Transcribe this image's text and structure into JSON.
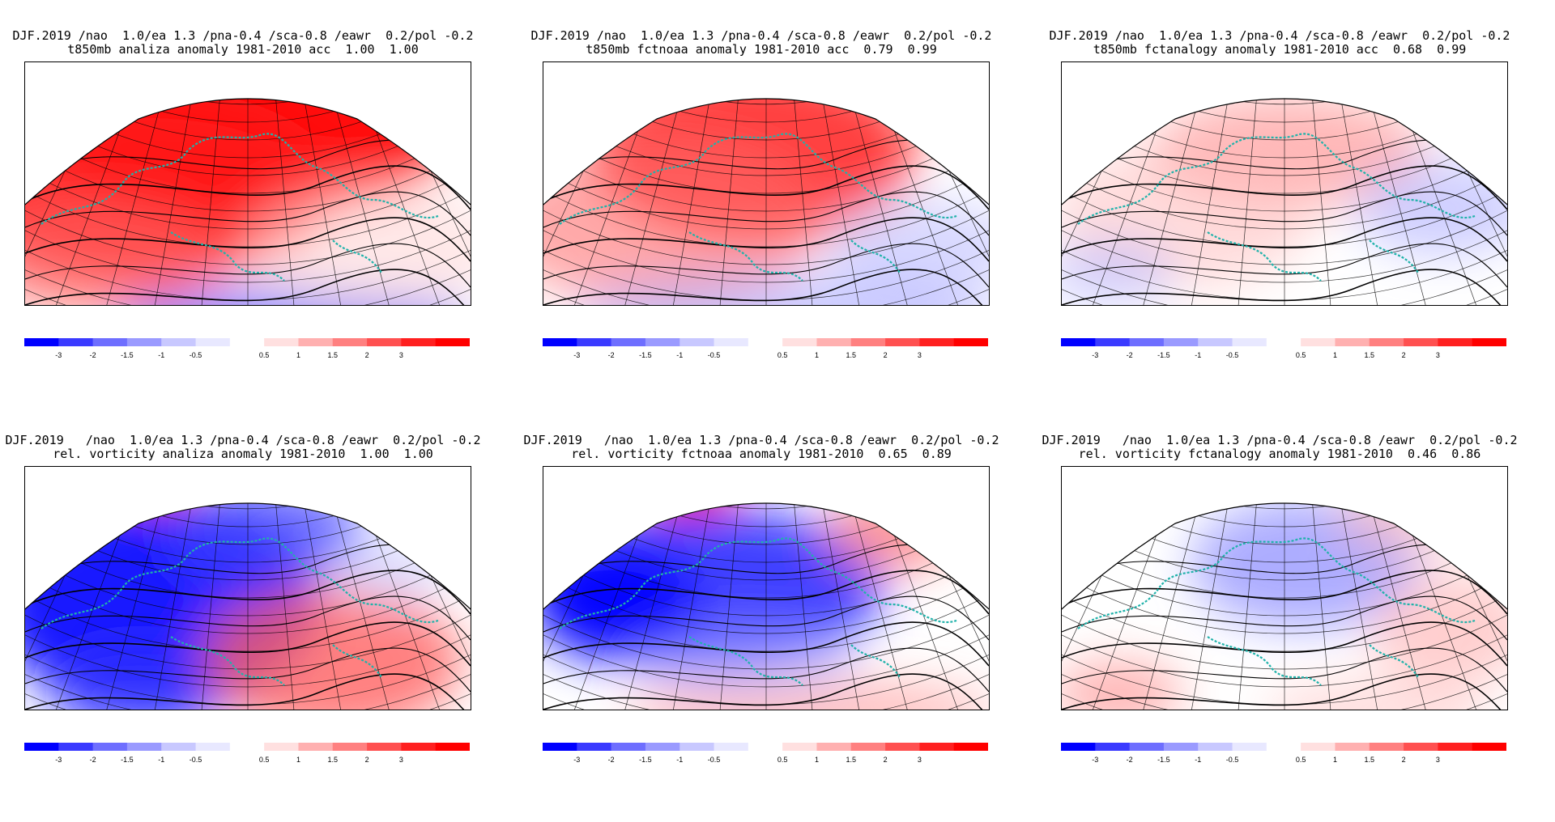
{
  "panels": [
    {
      "title1": "DJF.2019 /nao  1.0/ea 1.3 /pna-0.4 /sca-0.8 /eawr  0.2/pol -0.2",
      "title2": "t850mb analiza anomaly 1981-2010 acc  1.00  1.00",
      "pattern": "t_analysis"
    },
    {
      "title1": "DJF.2019 /nao  1.0/ea 1.3 /pna-0.4 /sca-0.8 /eawr  0.2/pol -0.2",
      "title2": "t850mb fctnoaa anomaly 1981-2010 acc  0.79  0.99",
      "pattern": "t_noaa"
    },
    {
      "title1": "DJF.2019 /nao  1.0/ea 1.3 /pna-0.4 /sca-0.8 /eawr  0.2/pol -0.2",
      "title2": "t850mb fctanalogy anomaly 1981-2010 acc  0.68  0.99",
      "pattern": "t_analog"
    },
    {
      "title1": "DJF.2019   /nao  1.0/ea 1.3 /pna-0.4 /sca-0.8 /eawr  0.2/pol -0.2",
      "title2": "rel. vorticity analiza anomaly 1981-2010  1.00  1.00",
      "pattern": "v_analysis"
    },
    {
      "title1": "DJF.2019   /nao  1.0/ea 1.3 /pna-0.4 /sca-0.8 /eawr  0.2/pol -0.2",
      "title2": "rel. vorticity fctnoaa anomaly 1981-2010  0.65  0.89",
      "pattern": "v_noaa"
    },
    {
      "title1": "DJF.2019   /nao  1.0/ea 1.3 /pna-0.4 /sca-0.8 /eawr  0.2/pol -0.2",
      "title2": "rel. vorticity fctanalogy anomaly 1981-2010  0.46  0.86",
      "pattern": "v_analog"
    }
  ],
  "colorbar": {
    "colors": [
      "#0000ff",
      "#3a3aff",
      "#6e6eff",
      "#9a9aff",
      "#c8c8ff",
      "#e8e8ff",
      "#ffffff",
      "#ffe0e0",
      "#ffb0b0",
      "#ff8080",
      "#ff5050",
      "#ff2020",
      "#ff0000"
    ],
    "labels": [
      "-3",
      "-2",
      "-1.5",
      "-1",
      "-0.5",
      "0.5",
      "1",
      "1.5",
      "2",
      "3"
    ]
  },
  "colors": {
    "coast": "#20b2aa",
    "contour": "#000000",
    "frame": "#000000"
  }
}
